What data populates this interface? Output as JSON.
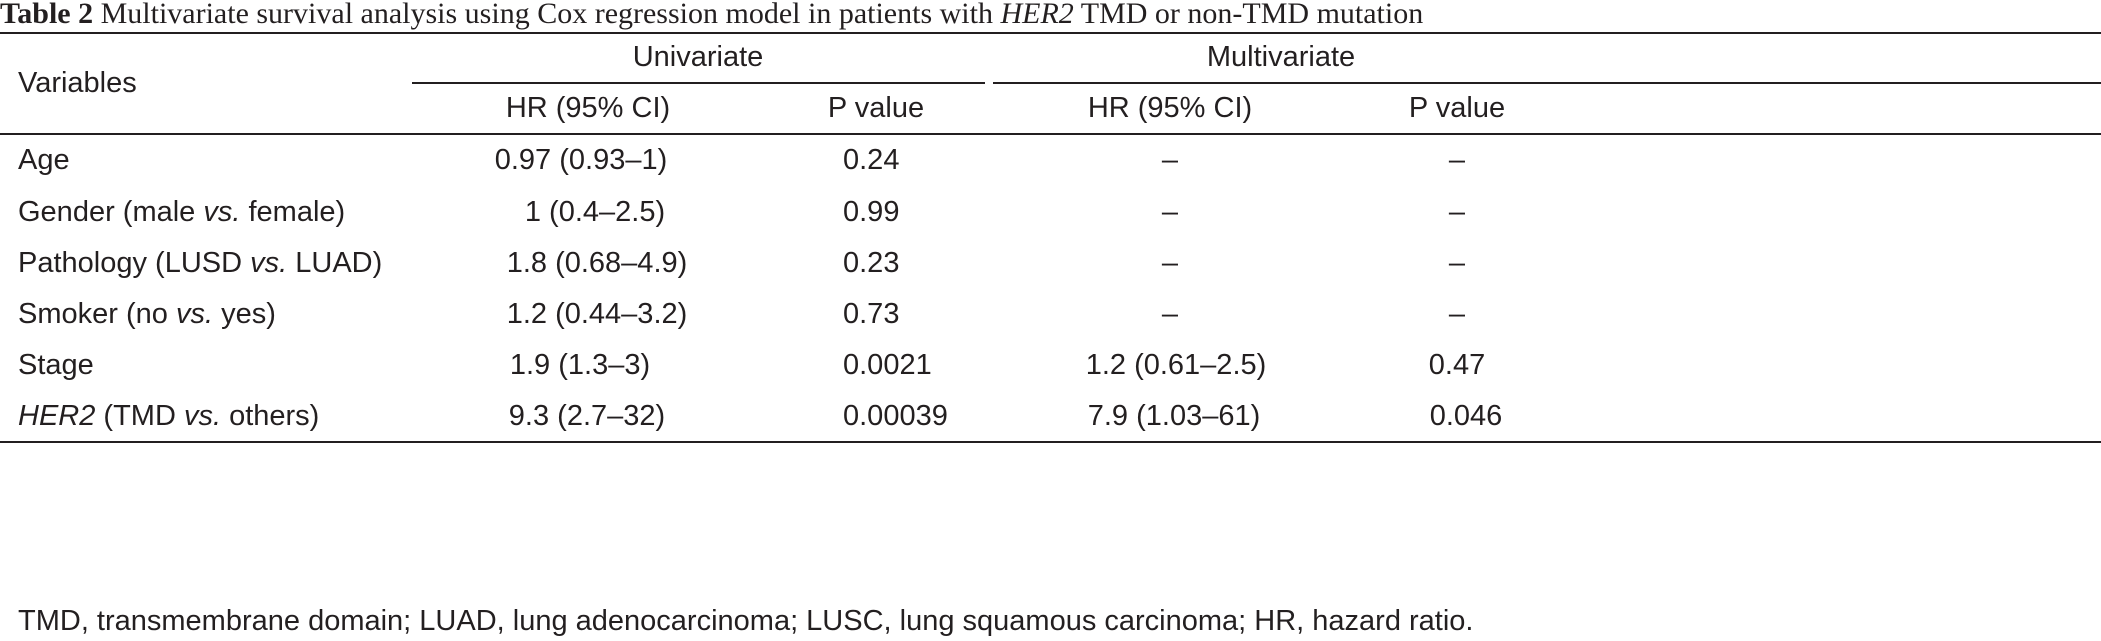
{
  "caption": {
    "label": "Table 2",
    "text_before": " Multivariate survival analysis using Cox regression model in patients with ",
    "gene": "HER2",
    "text_after": " TMD or non-TMD mutation"
  },
  "header": {
    "variables": "Variables",
    "univariate": "Univariate",
    "multivariate": "Multivariate",
    "uni_hr": "HR (95% CI)",
    "uni_p": "P value",
    "multi_hr": "HR (95% CI)",
    "multi_p": "P value"
  },
  "rows": [
    {
      "var_pre": "Age",
      "var_it": "",
      "var_post": "",
      "uni_hr": "0.97 (0.93–1)",
      "uni_p": "0.24",
      "multi_hr": "–",
      "multi_p": "–"
    },
    {
      "var_pre": "Gender (male ",
      "var_it": "vs.",
      "var_post": " female)",
      "uni_hr": "1 (0.4–2.5)",
      "uni_p": "0.99",
      "multi_hr": "–",
      "multi_p": "–"
    },
    {
      "var_pre": "Pathology (LUSD ",
      "var_it": "vs.",
      "var_post": " LUAD)",
      "uni_hr": "1.8 (0.68–4.9)",
      "uni_p": "0.23",
      "multi_hr": "–",
      "multi_p": "–"
    },
    {
      "var_pre": "Smoker (no ",
      "var_it": "vs.",
      "var_post": " yes)",
      "uni_hr": "1.2 (0.44–3.2)",
      "uni_p": "0.73",
      "multi_hr": "–",
      "multi_p": "–"
    },
    {
      "var_pre": "Stage",
      "var_it": "",
      "var_post": "",
      "uni_hr": "1.9 (1.3–3)",
      "uni_p": "0.0021",
      "multi_hr": "1.2 (0.61–2.5)",
      "multi_p": "0.47"
    },
    {
      "var_gene": "HER2",
      "var_pre": " (TMD ",
      "var_it": "vs.",
      "var_post": " others)",
      "uni_hr": "9.3 (2.7–32)",
      "uni_p": "0.00039",
      "multi_hr": "7.9 (1.03–61)",
      "multi_p": "0.046"
    }
  ],
  "footnote": "TMD, transmembrane domain; LUAD, lung adenocarcinoma; LUSC, lung squamous carcinoma; HR, hazard ratio."
}
